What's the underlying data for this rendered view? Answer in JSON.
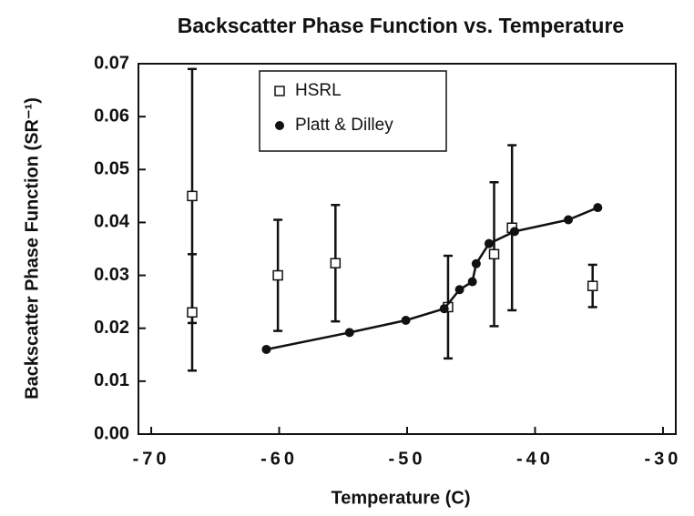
{
  "chart_data": {
    "type": "scatter",
    "title": "Backscatter Phase Function vs. Temperature",
    "x_label": "Temperature (C)",
    "y_label": "Backscatter Phase Function (SR⁻¹)",
    "xlim": [
      -71,
      -29
    ],
    "xticks": [
      -70,
      -60,
      -50,
      -40,
      -30
    ],
    "ylim": [
      0,
      0.07
    ],
    "yticks": [
      {
        "value": 0,
        "label": "0.00"
      },
      0.01,
      0.02,
      0.03,
      0.04,
      0.05,
      0.06,
      0.07
    ],
    "legend": "upper center",
    "series": [
      {
        "name": "HSRL",
        "color": "#111111",
        "marker": "square",
        "line": false,
        "x": [
          -66.8,
          -66.8,
          -60.1,
          -55.6,
          -46.8,
          -43.2,
          -41.8,
          -35.5
        ],
        "values": [
          0.045,
          0.023,
          0.03,
          0.0323,
          0.024,
          0.034,
          0.039,
          0.028
        ],
        "errors": [
          0.024,
          0.011,
          0.0105,
          0.011,
          0.0097,
          0.0136,
          0.0156,
          0.004
        ]
      },
      {
        "name": "Platt & Dilley",
        "color": "#111111",
        "marker": "circle",
        "line": true,
        "x": [
          -61.0,
          -54.5,
          -50.1,
          -47.1,
          -45.9,
          -44.9,
          -44.6,
          -43.6,
          -41.6,
          -37.4,
          -35.1
        ],
        "values": [
          0.016,
          0.0192,
          0.0215,
          0.0237,
          0.0273,
          0.0288,
          0.0322,
          0.036,
          0.0383,
          0.0405,
          0.0428
        ]
      }
    ]
  }
}
